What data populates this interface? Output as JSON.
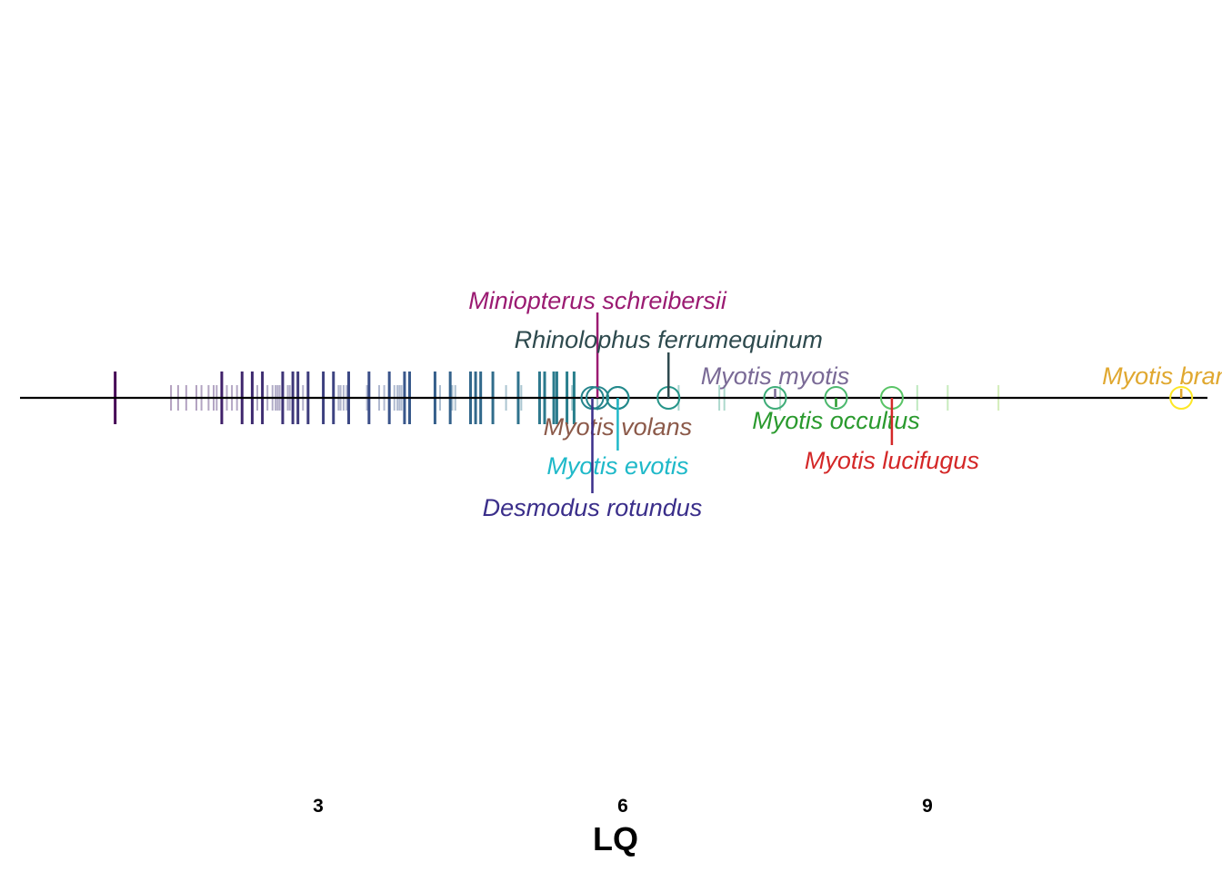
{
  "chart_data": {
    "type": "scatter",
    "xlabel": "LQ",
    "xticks": [
      3,
      6,
      9
    ],
    "xlim": [
      0.3,
      11.95
    ],
    "grid": false,
    "background_species": {
      "bold_values": [
        1.0,
        2.05,
        2.25,
        2.35,
        2.45,
        2.65,
        2.75,
        2.8,
        2.9,
        3.05,
        3.15,
        3.3,
        3.5,
        3.7,
        3.85,
        3.9,
        4.15,
        4.3,
        4.5,
        4.55,
        4.6,
        4.72,
        4.97,
        5.18,
        5.23,
        5.52,
        5.32,
        5.35,
        5.45
      ],
      "faint_values": [
        1.55,
        1.62,
        1.7,
        1.8,
        1.85,
        1.92,
        1.97,
        2.0,
        2.1,
        2.15,
        2.2,
        2.4,
        2.5,
        2.55,
        2.58,
        2.6,
        2.62,
        2.7,
        2.72,
        2.85,
        3.2,
        3.22,
        3.25,
        3.28,
        3.48,
        3.6,
        3.65,
        3.75,
        3.78,
        3.8,
        3.82,
        4.2,
        4.32,
        4.35,
        4.85,
        5.0,
        5.5,
        5.75,
        6.55,
        6.95,
        7.0,
        7.55,
        8.9,
        9.2,
        9.7
      ]
    },
    "highlighted": [
      {
        "name": "Miniopterus schreibersii",
        "value": 5.75,
        "color": "#9b1b72"
      },
      {
        "name": "Rhinolophus ferrumequinum",
        "value": 6.45,
        "color": "#2e4a4e"
      },
      {
        "name": "Myotis myotis",
        "value": 7.5,
        "color": "#7a6a96"
      },
      {
        "name": "Myotis brandtii",
        "value": 11.5,
        "color": "#e0a830"
      },
      {
        "name": "Myotis volans",
        "value": 5.95,
        "color": "#8c5a4a"
      },
      {
        "name": "Myotis evotis",
        "value": 5.95,
        "color": "#1fb9c9"
      },
      {
        "name": "Desmodus rotundus",
        "value": 5.7,
        "color": "#3a2e8a"
      },
      {
        "name": "Myotis occultus",
        "value": 8.1,
        "color": "#2a9a2e"
      },
      {
        "name": "Myotis lucifugus",
        "value": 8.65,
        "color": "#d42828"
      }
    ]
  }
}
